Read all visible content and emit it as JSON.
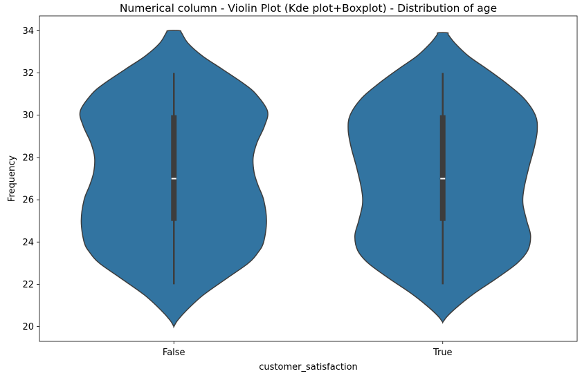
{
  "chart_data": {
    "type": "violin",
    "title": "Numerical column - Violin Plot (Kde plot+Boxplot) - Distribution of  age",
    "xlabel": "customer_satisfaction",
    "ylabel": "Frequency",
    "categories": [
      "False",
      "True"
    ],
    "ylim": [
      19.3,
      34.7
    ],
    "yticks": [
      20,
      22,
      24,
      26,
      28,
      30,
      32,
      34
    ],
    "grid": false,
    "color": "#3274a1",
    "edge_color": "#3d3d3d",
    "violins": [
      {
        "category": "False",
        "box": {
          "whisker_low": 22,
          "q1": 25,
          "median": 27,
          "q3": 30,
          "whisker_high": 32
        },
        "density_profile": [
          [
            20.0,
            0.0
          ],
          [
            20.3,
            0.04
          ],
          [
            20.8,
            0.14
          ],
          [
            21.5,
            0.31
          ],
          [
            22.3,
            0.56
          ],
          [
            23.0,
            0.78
          ],
          [
            23.5,
            0.88
          ],
          [
            24.0,
            0.94
          ],
          [
            25.0,
            0.97
          ],
          [
            26.0,
            0.94
          ],
          [
            26.7,
            0.88
          ],
          [
            27.3,
            0.84
          ],
          [
            28.0,
            0.83
          ],
          [
            28.7,
            0.87
          ],
          [
            29.5,
            0.95
          ],
          [
            30.2,
            0.98
          ],
          [
            31.0,
            0.86
          ],
          [
            31.5,
            0.73
          ],
          [
            32.2,
            0.5
          ],
          [
            32.8,
            0.3
          ],
          [
            33.4,
            0.15
          ],
          [
            33.9,
            0.08
          ],
          [
            34.0,
            0.06
          ]
        ]
      },
      {
        "category": "True",
        "box": {
          "whisker_low": 22,
          "q1": 25,
          "median": 27,
          "q3": 30,
          "whisker_high": 32
        },
        "density_profile": [
          [
            20.2,
            0.0
          ],
          [
            20.5,
            0.05
          ],
          [
            21.0,
            0.17
          ],
          [
            21.6,
            0.34
          ],
          [
            22.3,
            0.57
          ],
          [
            23.0,
            0.78
          ],
          [
            23.6,
            0.89
          ],
          [
            24.3,
            0.92
          ],
          [
            25.0,
            0.88
          ],
          [
            25.8,
            0.84
          ],
          [
            26.5,
            0.85
          ],
          [
            27.5,
            0.9
          ],
          [
            28.5,
            0.96
          ],
          [
            29.3,
            0.99
          ],
          [
            30.0,
            0.97
          ],
          [
            30.8,
            0.85
          ],
          [
            31.5,
            0.67
          ],
          [
            32.2,
            0.46
          ],
          [
            32.8,
            0.27
          ],
          [
            33.4,
            0.13
          ],
          [
            33.8,
            0.06
          ],
          [
            33.9,
            0.05
          ]
        ]
      }
    ]
  }
}
